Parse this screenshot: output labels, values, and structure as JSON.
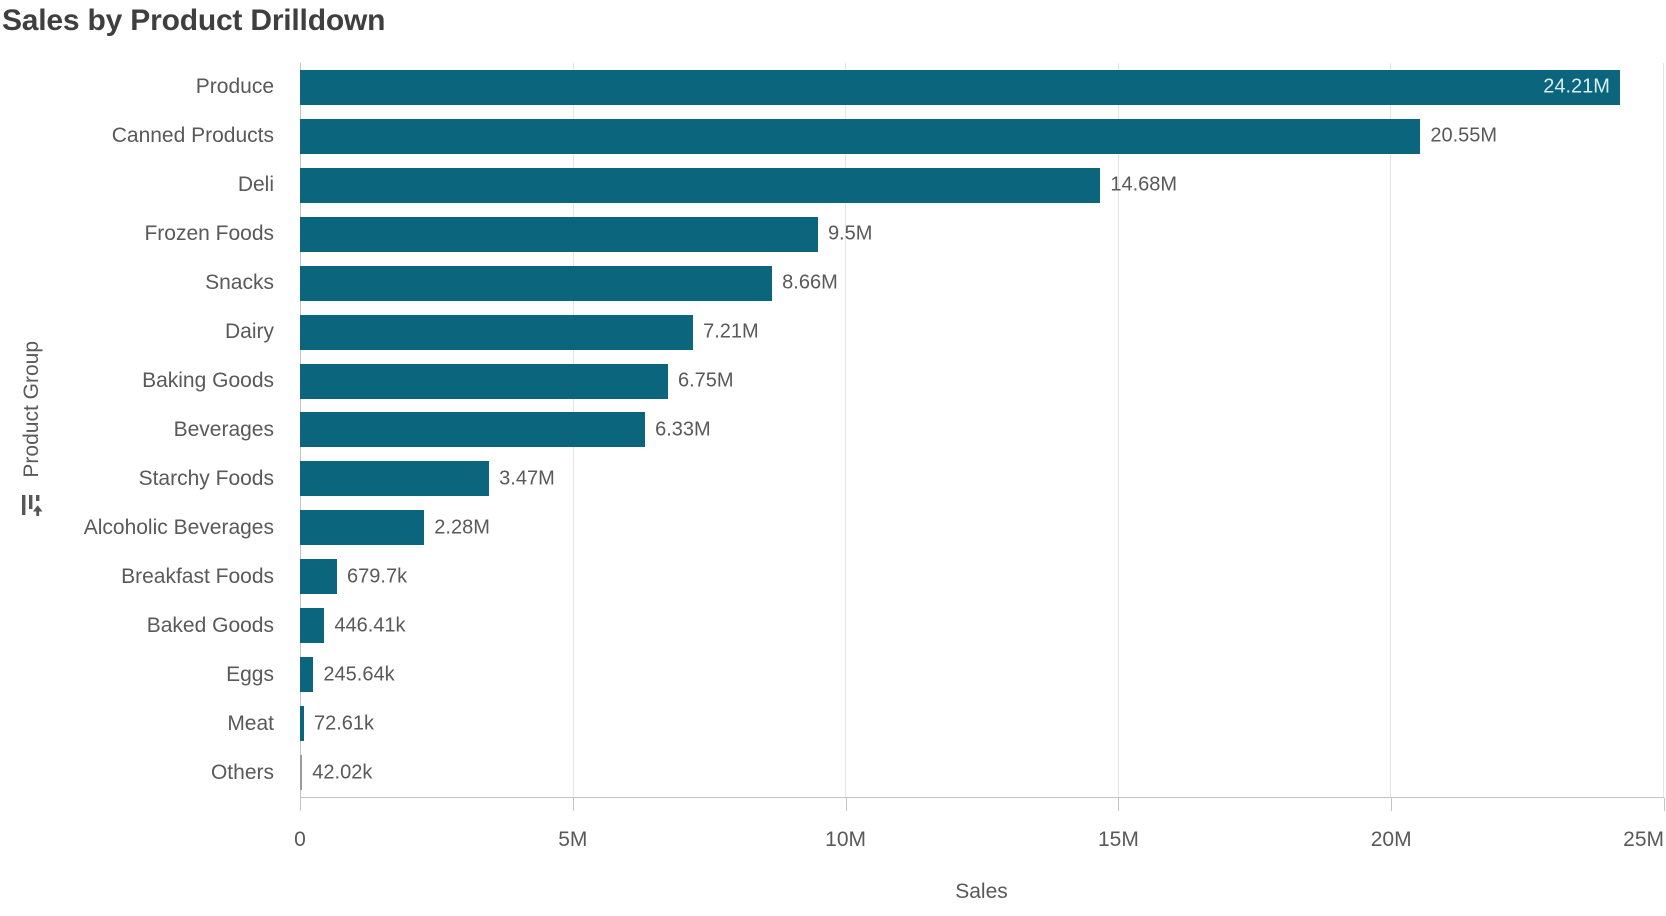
{
  "title": "Sales by Product Drilldown",
  "y_axis": {
    "label": "Product Group",
    "icon": "drilldown-icon"
  },
  "x_axis": {
    "label": "Sales",
    "ticks": [
      "0",
      "5M",
      "10M",
      "15M",
      "20M",
      "25M"
    ]
  },
  "chart_data": {
    "type": "bar",
    "orientation": "horizontal",
    "title": "Sales by Product Drilldown",
    "xlabel": "Sales",
    "ylabel": "Product Group",
    "xlim": [
      0,
      25000000
    ],
    "grid": true,
    "legend": false,
    "categories": [
      "Produce",
      "Canned Products",
      "Deli",
      "Frozen Foods",
      "Snacks",
      "Dairy",
      "Baking Goods",
      "Beverages",
      "Starchy Foods",
      "Alcoholic Beverages",
      "Breakfast Foods",
      "Baked Goods",
      "Eggs",
      "Meat",
      "Others"
    ],
    "values": [
      24210000,
      20550000,
      14680000,
      9500000,
      8660000,
      7210000,
      6750000,
      6330000,
      3470000,
      2280000,
      679700,
      446410,
      245640,
      72610,
      42020
    ],
    "value_labels": [
      "24.21M",
      "20.55M",
      "14.68M",
      "9.5M",
      "8.66M",
      "7.21M",
      "6.75M",
      "6.33M",
      "3.47M",
      "2.28M",
      "679.7k",
      "446.41k",
      "245.64k",
      "72.61k",
      "42.02k"
    ]
  },
  "colors": {
    "bar": "#0a657d",
    "others_bar": "#9b9b9b",
    "inside_label": "#d9edf2",
    "text": "#595959",
    "title": "#3f3f3f",
    "grid": "#e4e4e4",
    "axis": "#c4c4c4"
  }
}
